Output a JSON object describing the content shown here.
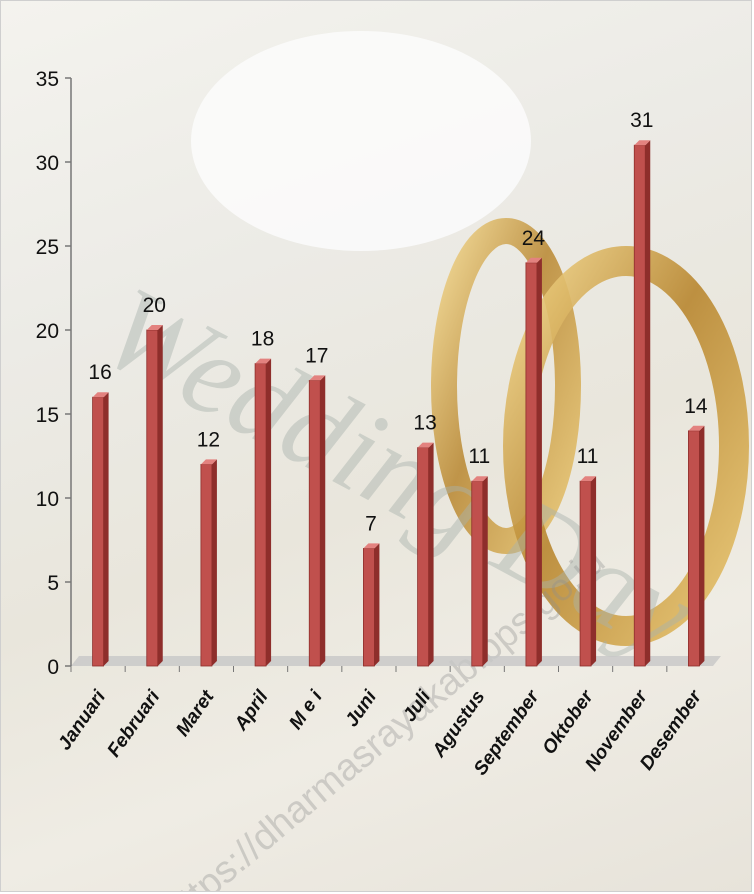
{
  "chart_data": {
    "type": "bar",
    "categories": [
      "Januari",
      "Februari",
      "Maret",
      "April",
      "M e i",
      "Juni",
      "Juli",
      "Agustus",
      "September",
      "Oktober",
      "November",
      "Desember"
    ],
    "values": [
      16,
      20,
      12,
      18,
      17,
      7,
      13,
      11,
      24,
      11,
      31,
      14
    ],
    "title": "",
    "xlabel": "",
    "ylabel": "",
    "ylim": [
      0,
      35
    ],
    "yticks": [
      0,
      5,
      10,
      15,
      20,
      25,
      30,
      35
    ],
    "grid": false,
    "legend": "none",
    "data_labels": true,
    "colors": {
      "bar": "#c0504d",
      "bar_dark": "#8e2e2b",
      "bar_light": "#e3827f",
      "floor": "#c7c7c7"
    }
  },
  "background": {
    "watermark": "https://dharmasrayakab.bps.go.id",
    "script_text": "Wedding Day"
  }
}
